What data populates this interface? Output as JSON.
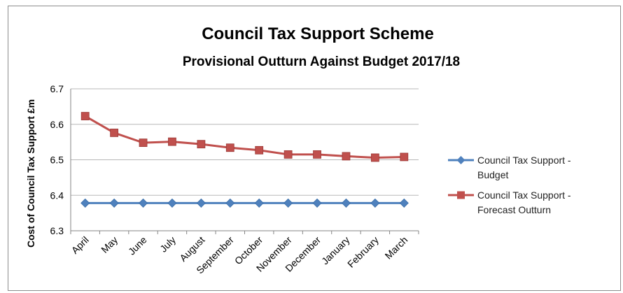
{
  "chart_data": {
    "type": "line",
    "title": "Council Tax Support Scheme",
    "subtitle": "Provisional Outturn Against Budget 2017/18",
    "xlabel": "",
    "ylabel": "Cost of Council Tax Support £m",
    "categories": [
      "April",
      "May",
      "June",
      "July",
      "August",
      "September",
      "October",
      "November",
      "December",
      "January",
      "February",
      "March"
    ],
    "ylim": [
      6.3,
      6.7
    ],
    "yticks": [
      "6.3",
      "6.4",
      "6.5",
      "6.6",
      "6.7"
    ],
    "grid": true,
    "legend_position": "right",
    "series": [
      {
        "name_lines": [
          "Council Tax Support -",
          "Budget"
        ],
        "color": "#4f81bd",
        "marker": "diamond",
        "values": [
          6.378,
          6.378,
          6.378,
          6.378,
          6.378,
          6.378,
          6.378,
          6.378,
          6.378,
          6.378,
          6.378,
          6.378
        ]
      },
      {
        "name_lines": [
          "Council Tax Support -",
          "Forecast Outturn"
        ],
        "color": "#c0504d",
        "marker": "square",
        "values": [
          6.623,
          6.576,
          6.548,
          6.551,
          6.544,
          6.534,
          6.527,
          6.515,
          6.515,
          6.51,
          6.506,
          6.508
        ]
      }
    ]
  }
}
